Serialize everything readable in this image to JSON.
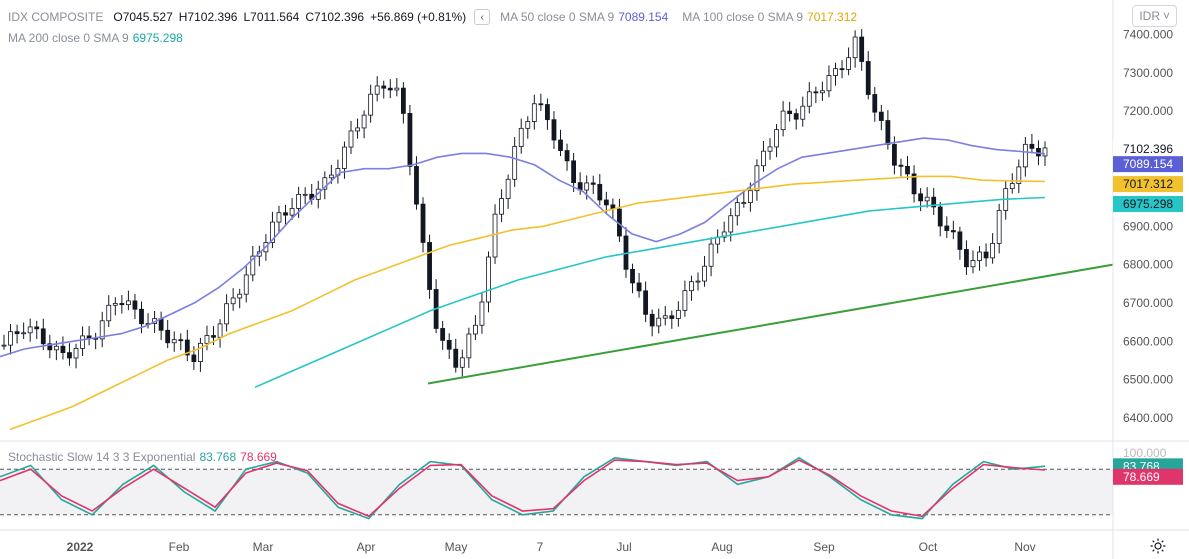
{
  "symbol": "IDX COMPOSITE",
  "ohlc": {
    "o_label": "O",
    "o": "7045.527",
    "h_label": "H",
    "h": "7102.396",
    "l_label": "L",
    "l": "7011.564",
    "c_label": "C",
    "c": "7102.396",
    "change": "+56.869 (+0.81%)"
  },
  "collapse_icon": "chevron-left-icon",
  "currency": "IDR",
  "ma": [
    {
      "label": "MA 50 close 0 SMA 9",
      "value": "7089.154",
      "color": "#7b7fe0"
    },
    {
      "label": "MA 100 close 0 SMA 9",
      "value": "7017.312",
      "color": "#f2c12e"
    },
    {
      "label": "MA 200 close 0 SMA 9",
      "value": "6975.298",
      "color": "#26c6c6"
    }
  ],
  "stoch": {
    "label": "Stochastic Slow 14 3 3 Exponential",
    "k": "83.768",
    "d": "78.669",
    "k_color": "#26a69a",
    "d_color": "#e0356b"
  },
  "last_price": "7102.396",
  "colors": {
    "up": "#131722",
    "down": "#131722",
    "trend": "#3a9e3a"
  },
  "chart_data": {
    "type": "line",
    "price_axis": {
      "ticks": [
        "7400.000",
        "7300.000",
        "7200.000",
        "7100.000",
        "7000.000",
        "6900.000",
        "6800.000",
        "6700.000",
        "6600.000",
        "6500.000",
        "6400.000"
      ],
      "range": [
        6340,
        7490
      ]
    },
    "stoch_axis": {
      "ticks": [
        "100.000"
      ],
      "range": [
        0,
        100
      ],
      "bands": [
        80,
        20
      ]
    },
    "time_axis": [
      "2022",
      "Feb",
      "Mar",
      "Apr",
      "May",
      "7",
      "Jul",
      "Aug",
      "Sep",
      "Oct",
      "Nov"
    ],
    "price_series": [
      6590,
      6640,
      6610,
      6560,
      6590,
      6630,
      6720,
      6670,
      6640,
      6600,
      6560,
      6620,
      6700,
      6790,
      6890,
      6950,
      6980,
      7010,
      7100,
      7200,
      7280,
      7230,
      6880,
      6600,
      6540,
      6650,
      6930,
      7100,
      7230,
      7150,
      7020,
      7000,
      6960,
      6780,
      6660,
      6650,
      6720,
      6800,
      6900,
      6960,
      7070,
      7180,
      7200,
      7260,
      7300,
      7380,
      7200,
      7080,
      7000,
      6950,
      6880,
      6800,
      6830,
      7000,
      7100,
      7102
    ],
    "ma50": [
      6560,
      6580,
      6590,
      6600,
      6610,
      6620,
      6640,
      6670,
      6700,
      6740,
      6790,
      6850,
      6920,
      6980,
      7040,
      7050,
      7050,
      7060,
      7080,
      7090,
      7090,
      7080,
      7060,
      7020,
      6990,
      6930,
      6880,
      6860,
      6880,
      6910,
      6960,
      7010,
      7050,
      7080,
      7090,
      7100,
      7110,
      7120,
      7130,
      7125,
      7110,
      7100,
      7095,
      7089
    ],
    "ma100": [
      6370,
      6400,
      6430,
      6470,
      6510,
      6550,
      6580,
      6620,
      6650,
      6680,
      6720,
      6760,
      6790,
      6820,
      6850,
      6870,
      6890,
      6900,
      6920,
      6940,
      6960,
      6970,
      6980,
      6990,
      7000,
      7010,
      7015,
      7020,
      7025,
      7030,
      7030,
      7020,
      7018,
      7017
    ],
    "ma200": [
      6480,
      6530,
      6580,
      6630,
      6680,
      6720,
      6760,
      6790,
      6820,
      6840,
      6860,
      6880,
      6900,
      6920,
      6940,
      6950,
      6960,
      6970,
      6975
    ],
    "trendline": [
      [
        6490
      ],
      [
        6800
      ]
    ],
    "stoch_k": [
      70,
      85,
      40,
      20,
      60,
      85,
      50,
      25,
      80,
      90,
      75,
      30,
      15,
      60,
      90,
      85,
      40,
      20,
      25,
      70,
      95,
      90,
      85,
      90,
      60,
      70,
      95,
      70,
      40,
      20,
      15,
      60,
      90,
      80,
      84
    ],
    "stoch_d": [
      65,
      80,
      45,
      25,
      55,
      80,
      55,
      30,
      75,
      88,
      78,
      35,
      18,
      55,
      85,
      86,
      45,
      25,
      28,
      65,
      92,
      90,
      86,
      88,
      65,
      70,
      92,
      72,
      45,
      25,
      18,
      55,
      86,
      82,
      79
    ]
  }
}
